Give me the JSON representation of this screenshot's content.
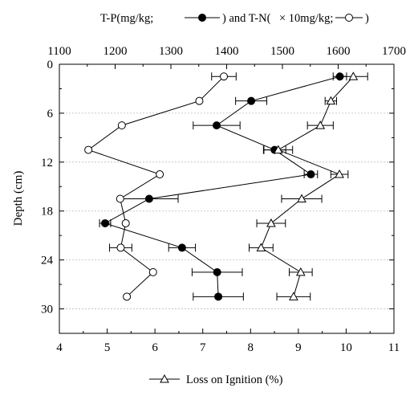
{
  "chart_data": {
    "type": "scatter",
    "y_axis": {
      "label": "Depth (cm)",
      "ticks": [
        0,
        6,
        12,
        18,
        24,
        30
      ],
      "minor_ticks": [
        3,
        9,
        15,
        21,
        27,
        33
      ],
      "range": [
        0,
        33
      ],
      "inverted": true
    },
    "x_bottom": {
      "ticks": [
        4,
        5,
        6,
        7,
        8,
        9,
        10,
        11
      ],
      "range": [
        4,
        11
      ],
      "label": "Loss on Ignition (%)"
    },
    "x_top": {
      "ticks": [
        1100,
        1200,
        1300,
        1400,
        1500,
        1600,
        1700
      ],
      "range": [
        1100,
        1700
      ],
      "label": "T-P(mg/kg; ——●—— ) and T-N(× 10mg/kg; ——○—— )"
    },
    "legend": {
      "top_text_1": "T-P(mg/kg;",
      "top_text_2": ") and T-N(",
      "top_text_3": "× 10mg/kg;",
      "top_text_4": ")",
      "bottom_text": "Loss on Ignition (%)"
    },
    "series": [
      {
        "name": "T-P",
        "axis": "top",
        "marker": "filled-circle",
        "points": [
          {
            "depth": 1.5,
            "value": 1603,
            "err": 12
          },
          {
            "depth": 4.5,
            "value": 1444,
            "err": 28
          },
          {
            "depth": 7.5,
            "value": 1382,
            "err": 42
          },
          {
            "depth": 10.5,
            "value": 1486,
            "err": 20
          },
          {
            "depth": 13.5,
            "value": 1551,
            "err": 12
          },
          {
            "depth": 16.5,
            "value": 1261,
            "err": 52
          },
          {
            "depth": 19.5,
            "value": 1182,
            "err": 10
          },
          {
            "depth": 22.5,
            "value": 1320,
            "err": 24
          },
          {
            "depth": 25.5,
            "value": 1383,
            "err": 45
          },
          {
            "depth": 28.5,
            "value": 1385,
            "err": 45
          }
        ]
      },
      {
        "name": "T-N",
        "axis": "top",
        "marker": "open-circle",
        "points": [
          {
            "depth": 1.5,
            "value": 1395,
            "err": 22
          },
          {
            "depth": 4.5,
            "value": 1351,
            "err": 0
          },
          {
            "depth": 7.5,
            "value": 1212,
            "err": 0
          },
          {
            "depth": 10.5,
            "value": 1152,
            "err": 0
          },
          {
            "depth": 13.5,
            "value": 1280,
            "err": 0
          },
          {
            "depth": 16.5,
            "value": 1209,
            "err": 0
          },
          {
            "depth": 19.5,
            "value": 1219,
            "err": 0
          },
          {
            "depth": 22.5,
            "value": 1210,
            "err": 20
          },
          {
            "depth": 25.5,
            "value": 1268,
            "err": 0
          },
          {
            "depth": 28.5,
            "value": 1221,
            "err": 0
          }
        ]
      },
      {
        "name": "Loss on Ignition",
        "axis": "bottom",
        "marker": "open-triangle",
        "points": [
          {
            "depth": 1.5,
            "value": 10.15,
            "err": 0.3
          },
          {
            "depth": 4.5,
            "value": 9.68,
            "err": 0.12
          },
          {
            "depth": 7.5,
            "value": 9.46,
            "err": 0.27
          },
          {
            "depth": 10.5,
            "value": 8.58,
            "err": 0.3
          },
          {
            "depth": 13.5,
            "value": 9.86,
            "err": 0.18
          },
          {
            "depth": 16.5,
            "value": 9.07,
            "err": 0.42
          },
          {
            "depth": 19.5,
            "value": 8.43,
            "err": 0.3
          },
          {
            "depth": 22.5,
            "value": 8.22,
            "err": 0.25
          },
          {
            "depth": 25.5,
            "value": 9.05,
            "err": 0.24
          },
          {
            "depth": 28.5,
            "value": 8.9,
            "err": 0.35
          }
        ]
      }
    ]
  }
}
